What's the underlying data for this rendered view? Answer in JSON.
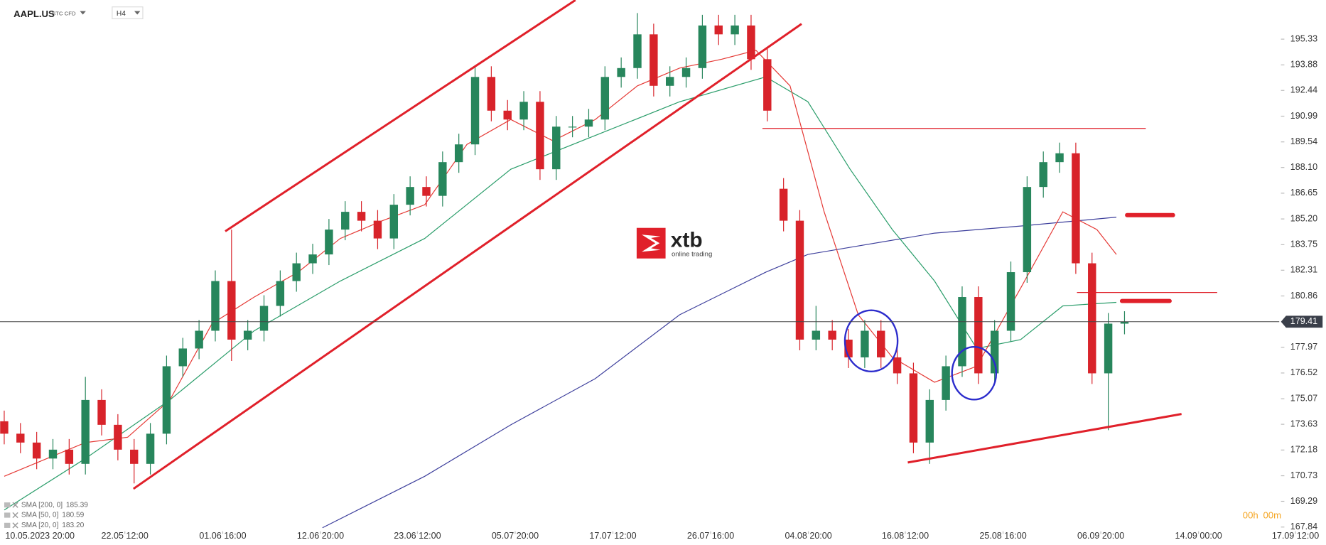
{
  "header": {
    "symbol": "AAPL.US",
    "instrument_type": "STC CFD",
    "timeframe": "H4"
  },
  "logo": {
    "name": "xtb",
    "tagline": "online trading"
  },
  "timer": {
    "hours": "00h",
    "minutes": "00m"
  },
  "chart_data": {
    "type": "candlestick",
    "up_color": "#27865c",
    "down_color": "#d8232a",
    "grid": false,
    "xlim": [
      -0.26,
      81.41
    ],
    "ylim": [
      167.6,
      197.53
    ],
    "yticks": [
      195.33,
      193.88,
      192.44,
      190.99,
      189.54,
      {
        "value": 188.1,
        "label": "188.10"
      },
      186.65,
      {
        "value": 185.2,
        "label": "185.20"
      },
      183.75,
      182.31,
      180.86,
      177.97,
      176.52,
      175.07,
      173.63,
      172.18,
      170.73,
      169.29,
      167.84
    ],
    "xticks": [
      {
        "value": 2.2,
        "label": "10.05.2023  20:00"
      },
      {
        "value": 7.43,
        "label": "22.05  12:00"
      },
      {
        "value": 13.46,
        "label": "01.06  16:00"
      },
      {
        "value": 19.48,
        "label": "12.06  20:00"
      },
      {
        "value": 25.45,
        "label": "23.06  12:00"
      },
      {
        "value": 31.47,
        "label": "05.07  20:00"
      },
      {
        "value": 37.49,
        "label": "17.07  12:00"
      },
      {
        "value": 43.51,
        "label": "26.07  16:00"
      },
      {
        "value": 49.53,
        "label": "04.08  20:00"
      },
      {
        "value": 55.5,
        "label": "16.08  12:00"
      },
      {
        "value": 61.52,
        "label": "25.08  16:00"
      },
      {
        "value": 67.54,
        "label": "06.09  20:00"
      },
      {
        "value": 73.56,
        "label": "14.09  00:00"
      },
      {
        "value": 79.53,
        "label": "17.09  12:00"
      }
    ],
    "last_price": 179.41,
    "open": [
      173.8,
      173.1,
      172.6,
      171.7,
      172.2,
      171.4,
      175.0,
      173.6,
      172.2,
      171.4,
      173.1,
      176.9,
      177.9,
      178.9,
      181.7,
      178.4,
      178.9,
      180.3,
      181.7,
      182.7,
      183.2,
      184.6,
      185.6,
      185.1,
      184.1,
      186.0,
      187.0,
      186.5,
      188.4,
      189.4,
      193.2,
      191.3,
      190.8,
      191.8,
      188.0,
      190.4,
      190.4,
      190.8,
      193.2,
      193.7,
      195.6,
      192.7,
      193.2,
      193.7,
      196.1,
      195.6,
      196.1,
      194.2,
      186.9,
      185.1,
      178.4,
      178.9,
      178.4,
      177.4,
      178.9,
      177.4,
      176.5,
      172.6,
      175.0,
      176.9,
      180.8,
      176.5,
      178.9,
      182.2,
      187.0,
      188.4,
      188.9,
      182.7,
      176.5,
      179.3
    ],
    "high": [
      174.4,
      173.7,
      173.2,
      172.8,
      172.8,
      176.3,
      175.6,
      174.2,
      172.8,
      173.7,
      177.5,
      178.5,
      179.5,
      182.3,
      184.6,
      179.5,
      180.9,
      182.3,
      183.3,
      183.8,
      185.2,
      186.2,
      186.2,
      185.7,
      186.6,
      187.6,
      187.6,
      189.0,
      190.0,
      193.8,
      193.8,
      191.9,
      192.4,
      192.4,
      191.0,
      191.0,
      191.4,
      193.8,
      194.3,
      196.8,
      196.2,
      193.8,
      194.3,
      196.7,
      196.7,
      196.7,
      196.7,
      194.8,
      187.5,
      185.7,
      180.3,
      179.5,
      179.0,
      179.5,
      179.5,
      178.0,
      177.1,
      175.6,
      177.5,
      181.4,
      181.4,
      179.5,
      182.8,
      187.6,
      189.0,
      189.5,
      189.5,
      183.3,
      179.9,
      180.0
    ],
    "low": [
      172.5,
      172.0,
      171.1,
      171.1,
      170.8,
      170.8,
      173.0,
      171.6,
      170.3,
      170.8,
      172.5,
      176.3,
      177.3,
      178.3,
      177.2,
      177.8,
      178.3,
      179.7,
      181.1,
      182.1,
      182.6,
      184.0,
      184.5,
      183.5,
      183.5,
      185.4,
      185.9,
      185.9,
      187.8,
      188.8,
      190.7,
      190.2,
      190.2,
      187.4,
      187.4,
      189.8,
      189.8,
      190.2,
      192.6,
      193.1,
      192.1,
      192.1,
      192.6,
      193.1,
      195.0,
      195.0,
      193.6,
      190.7,
      184.5,
      177.8,
      177.8,
      177.8,
      176.8,
      176.8,
      176.8,
      175.9,
      172.0,
      171.4,
      174.4,
      176.3,
      175.9,
      175.9,
      178.3,
      181.6,
      186.4,
      187.8,
      182.1,
      175.9,
      173.3,
      178.7
    ],
    "close": [
      173.1,
      172.6,
      171.7,
      172.2,
      171.4,
      175.0,
      173.6,
      172.2,
      171.4,
      173.1,
      176.9,
      177.9,
      178.9,
      181.7,
      178.4,
      178.9,
      180.3,
      181.7,
      182.7,
      183.2,
      184.6,
      185.6,
      185.1,
      184.1,
      186.0,
      187.0,
      186.5,
      188.4,
      189.4,
      193.2,
      191.3,
      190.8,
      191.8,
      188.0,
      190.4,
      190.4,
      190.8,
      193.2,
      193.7,
      195.6,
      192.7,
      193.2,
      193.7,
      196.1,
      195.6,
      196.1,
      194.2,
      191.3,
      185.1,
      178.4,
      178.9,
      178.4,
      177.4,
      178.9,
      177.4,
      176.5,
      172.6,
      175.0,
      176.9,
      180.8,
      176.5,
      178.9,
      182.2,
      187.0,
      188.4,
      188.9,
      182.7,
      176.5,
      179.3,
      179.4
    ],
    "series": [
      {
        "name": "SMA [200,  0]",
        "legend_value": 185.39,
        "color": "#3d3f9c",
        "x": [
          19.6,
          25.9,
          31.2,
          36.4,
          41.6,
          46.9,
          49.5,
          52.1,
          57.3,
          62.6,
          68.5
        ],
        "values": [
          167.8,
          170.7,
          173.6,
          176.2,
          179.8,
          182.2,
          183.2,
          183.6,
          184.4,
          184.8,
          185.3
        ]
      },
      {
        "name": "SMA [50,  0]",
        "legend_value": 180.59,
        "color": "#2a9d6a",
        "x": [
          0,
          5.0,
          10.2,
          15.4,
          20.7,
          25.9,
          31.2,
          36.4,
          41.6,
          46.9,
          49.5,
          52.1,
          54.7,
          57.3,
          59.9,
          62.6,
          65.2,
          68.5
        ],
        "values": [
          168.8,
          171.7,
          175.0,
          178.9,
          181.7,
          184.1,
          188.0,
          189.9,
          191.8,
          193.2,
          191.8,
          188.0,
          184.6,
          181.7,
          177.9,
          178.4,
          180.3,
          180.5
        ]
      },
      {
        "name": "SMA [20,  0]",
        "legend_value": 183.2,
        "legend_label": "183.20",
        "color": "#e53935",
        "x": [
          0,
          5.0,
          7.6,
          10.2,
          12.8,
          15.4,
          18.1,
          20.7,
          23.3,
          25.9,
          28.5,
          31.2,
          33.8,
          36.4,
          39.0,
          41.6,
          44.2,
          46.3,
          48.4,
          50.5,
          52.6,
          54.7,
          57.3,
          59.9,
          62.6,
          65.2,
          67.3,
          68.5
        ],
        "values": [
          170.7,
          172.6,
          172.9,
          175.0,
          179.3,
          180.8,
          182.2,
          184.1,
          185.1,
          186.0,
          189.4,
          190.8,
          189.6,
          190.8,
          192.7,
          193.7,
          194.2,
          194.7,
          192.7,
          185.6,
          179.8,
          177.4,
          176.0,
          176.9,
          181.3,
          185.6,
          184.6,
          183.2
        ]
      }
    ]
  }
}
